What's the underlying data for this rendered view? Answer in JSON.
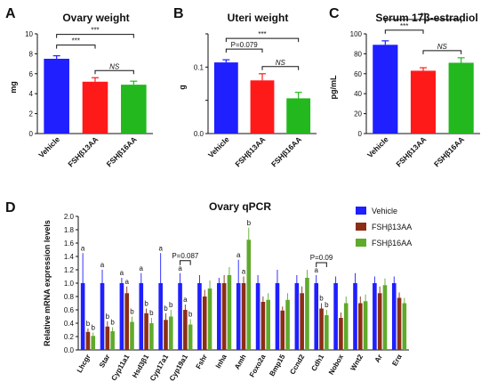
{
  "panels": {
    "A": {
      "letter": "A"
    },
    "B": {
      "letter": "B"
    },
    "C": {
      "letter": "C"
    },
    "D": {
      "letter": "D"
    }
  },
  "colors": {
    "vehicle": "#1f1fff",
    "fsh13": "#ff1a1a",
    "fsh16": "#22b81e",
    "d_fsh13": "#8b2e16",
    "d_fsh16": "#5faa2b"
  },
  "chart_data": [
    {
      "type": "bar",
      "panel": "A",
      "title": "Ovary weight",
      "ylabel": "mg",
      "categories": [
        "Vehicle",
        "FSHβ13AA",
        "FSHβ16AA"
      ],
      "values": [
        7.5,
        5.2,
        4.9
      ],
      "errors": [
        0.3,
        0.4,
        0.35
      ],
      "ylim": [
        0,
        10
      ],
      "yticks": [
        0,
        2,
        4,
        6,
        8,
        10
      ],
      "annotations": [
        {
          "from": 0,
          "to": 1,
          "label": "***"
        },
        {
          "from": 0,
          "to": 2,
          "label": "***"
        },
        {
          "from": 1,
          "to": 2,
          "label": "NS"
        }
      ]
    },
    {
      "type": "bar",
      "panel": "B",
      "title": "Uteri weight",
      "ylabel": "g",
      "categories": [
        "Vehicle",
        "FSHβ13AA",
        "FSHβ16AA"
      ],
      "values": [
        0.107,
        0.08,
        0.053
      ],
      "errors": [
        0.004,
        0.01,
        0.009
      ],
      "ylim": [
        0,
        0.15
      ],
      "yticks": [
        0.0,
        0.05,
        0.1,
        0.15
      ],
      "ytick_labels": [
        "0.0",
        "",
        "0.1",
        ""
      ],
      "annotations": [
        {
          "from": 0,
          "to": 1,
          "label": "P=0.079"
        },
        {
          "from": 0,
          "to": 2,
          "label": "***"
        },
        {
          "from": 1,
          "to": 2,
          "label": "NS"
        }
      ]
    },
    {
      "type": "bar",
      "panel": "C",
      "title": "Serum 17β-estradiol",
      "ylabel": "pg/mL",
      "categories": [
        "Vehicle",
        "FSHβ13AA",
        "FSHβ16AA"
      ],
      "values": [
        89,
        63,
        71
      ],
      "errors": [
        4,
        3,
        5
      ],
      "ylim": [
        0,
        100
      ],
      "yticks": [
        0,
        20,
        40,
        60,
        80,
        100
      ],
      "annotations": [
        {
          "from": 0,
          "to": 1,
          "label": "***"
        },
        {
          "from": 0,
          "to": 2,
          "label": "**"
        },
        {
          "from": 1,
          "to": 2,
          "label": "NS"
        }
      ]
    },
    {
      "type": "bar",
      "panel": "D",
      "title": "Ovary qPCR",
      "ylabel": "Relative mRNA expression levels",
      "ylim": [
        0,
        2.0
      ],
      "yticks": [
        0.0,
        0.2,
        0.4,
        0.6,
        0.8,
        1.0,
        1.2,
        1.4,
        1.6,
        1.8,
        2.0
      ],
      "categories": [
        "Lhcgr",
        "Star",
        "Cyp11a1",
        "Hsd3β1",
        "Cyp17a1",
        "Cyp19a1",
        "Fshr",
        "Inha",
        "Amh",
        "Foxo2a",
        "Bmp15",
        "Ccnd2",
        "Cdh1",
        "Nobox",
        "Wnt2",
        "Ar",
        "Erα"
      ],
      "series": [
        {
          "name": "Vehicle",
          "values": [
            1,
            1,
            1,
            1,
            1,
            1,
            1,
            1,
            1,
            1,
            1,
            1,
            1,
            1,
            1,
            1,
            1
          ],
          "errors": [
            0.45,
            0.2,
            0.08,
            0.15,
            0.45,
            0.15,
            0.12,
            0.08,
            0.35,
            0.12,
            0.2,
            0.12,
            0.12,
            0.1,
            0.15,
            0.1,
            0.1
          ]
        },
        {
          "name": "FSHβ13AA",
          "values": [
            0.27,
            0.35,
            0.85,
            0.55,
            0.45,
            0.6,
            0.8,
            1.0,
            1.0,
            0.72,
            0.59,
            0.85,
            0.62,
            0.48,
            0.7,
            0.85,
            0.78
          ],
          "errors": [
            0.05,
            0.08,
            0.1,
            0.07,
            0.1,
            0.08,
            0.1,
            0.12,
            0.1,
            0.08,
            0.06,
            0.1,
            0.08,
            0.08,
            0.1,
            0.1,
            0.08
          ]
        },
        {
          "name": "FSHβ16AA",
          "values": [
            0.21,
            0.28,
            0.42,
            0.4,
            0.5,
            0.38,
            0.92,
            1.12,
            1.65,
            0.75,
            0.75,
            1.08,
            0.52,
            0.7,
            0.73,
            0.97,
            0.7
          ],
          "errors": [
            0.05,
            0.06,
            0.08,
            0.08,
            0.1,
            0.08,
            0.12,
            0.12,
            0.18,
            0.1,
            0.1,
            0.12,
            0.08,
            0.1,
            0.1,
            0.1,
            0.08
          ]
        }
      ],
      "letters": [
        [
          "a",
          "b",
          "b"
        ],
        [
          "a",
          "b",
          "b"
        ],
        [
          "a",
          "a",
          "b"
        ],
        [
          "a",
          "b",
          "b"
        ],
        [
          "a",
          "b",
          "b"
        ],
        [
          "a",
          "a",
          "b"
        ],
        [
          "",
          "",
          ""
        ],
        [
          "",
          "",
          ""
        ],
        [
          "a",
          "a",
          "b"
        ],
        [
          "",
          "",
          ""
        ],
        [
          "",
          "",
          ""
        ],
        [
          "",
          "",
          ""
        ],
        [
          "a",
          "b",
          "b"
        ],
        [
          "",
          "",
          ""
        ],
        [
          "",
          "",
          ""
        ],
        [
          "",
          "",
          ""
        ],
        [
          "",
          "",
          ""
        ]
      ],
      "annotations": [
        {
          "category": 5,
          "label": "P=0.087"
        },
        {
          "category": 12,
          "label": "P=0.09"
        }
      ],
      "legend": [
        "Vehicle",
        "FSHβ13AA",
        "FSHβ16AA"
      ],
      "legend_position": "top-right"
    }
  ]
}
